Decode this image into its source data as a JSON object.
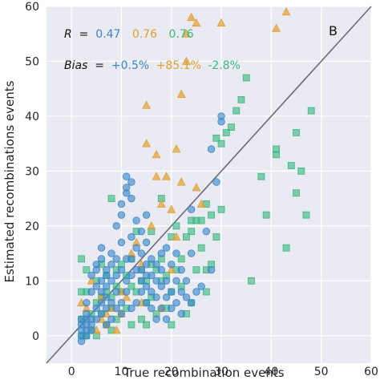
{
  "chart_data": {
    "type": "scatter",
    "xlabel": "True recombination events",
    "ylabel": "Estimated recombinations events",
    "xlim": [
      -5,
      60
    ],
    "ylim": [
      -5,
      60
    ],
    "x_ticks": [
      0,
      10,
      20,
      30,
      40,
      50,
      60
    ],
    "y_ticks": [
      0,
      10,
      20,
      30,
      40,
      50,
      60
    ],
    "grid": true,
    "background": "#eaeaf2",
    "panel_label": "B",
    "reference_line": {
      "from": [
        -5,
        -5
      ],
      "to": [
        60,
        60
      ],
      "color": "#6b6b78"
    },
    "annotations": {
      "r_label": "R",
      "r_equals": " = ",
      "bias_label": "Bias",
      "bias_equals": " = ",
      "r_values": [
        "0.47",
        "0.76",
        "0.76"
      ],
      "bias_values": [
        "+0.5%",
        "+85.1%",
        "-2.8%"
      ]
    },
    "series": [
      {
        "marker": "circle",
        "color": "#3a87c8",
        "points": [
          [
            2,
            -1
          ],
          [
            2,
            0
          ],
          [
            2,
            1
          ],
          [
            2,
            2
          ],
          [
            2,
            3
          ],
          [
            3,
            0
          ],
          [
            3,
            1
          ],
          [
            3,
            2
          ],
          [
            3,
            3
          ],
          [
            3,
            4
          ],
          [
            3,
            6
          ],
          [
            4,
            1
          ],
          [
            4,
            2
          ],
          [
            4,
            3
          ],
          [
            4,
            8
          ],
          [
            4,
            11
          ],
          [
            5,
            3
          ],
          [
            5,
            5
          ],
          [
            5,
            9
          ],
          [
            5,
            12
          ],
          [
            5,
            13
          ],
          [
            6,
            4
          ],
          [
            6,
            6
          ],
          [
            6,
            8
          ],
          [
            6,
            10
          ],
          [
            6,
            14
          ],
          [
            6,
            16
          ],
          [
            7,
            2
          ],
          [
            7,
            5
          ],
          [
            7,
            7
          ],
          [
            7,
            9
          ],
          [
            7,
            11
          ],
          [
            7,
            12
          ],
          [
            8,
            3
          ],
          [
            8,
            6
          ],
          [
            8,
            10
          ],
          [
            8,
            13
          ],
          [
            8,
            15
          ],
          [
            9,
            5
          ],
          [
            9,
            8
          ],
          [
            9,
            11
          ],
          [
            9,
            14
          ],
          [
            9,
            20
          ],
          [
            10,
            4
          ],
          [
            10,
            6
          ],
          [
            10,
            12
          ],
          [
            10,
            17
          ],
          [
            10,
            22
          ],
          [
            10,
            24
          ],
          [
            11,
            8
          ],
          [
            11,
            10
          ],
          [
            11,
            14
          ],
          [
            11,
            26
          ],
          [
            11,
            27
          ],
          [
            11,
            29
          ],
          [
            12,
            5
          ],
          [
            12,
            11
          ],
          [
            12,
            14
          ],
          [
            12,
            18
          ],
          [
            12,
            25
          ],
          [
            12,
            28
          ],
          [
            13,
            6
          ],
          [
            13,
            12
          ],
          [
            13,
            16
          ],
          [
            13,
            21
          ],
          [
            14,
            8
          ],
          [
            14,
            10
          ],
          [
            14,
            12
          ],
          [
            14,
            15
          ],
          [
            14,
            19
          ],
          [
            15,
            6
          ],
          [
            15,
            9
          ],
          [
            15,
            11
          ],
          [
            15,
            13
          ],
          [
            15,
            17
          ],
          [
            15,
            22
          ],
          [
            16,
            5
          ],
          [
            16,
            8
          ],
          [
            16,
            11
          ],
          [
            16,
            14
          ],
          [
            17,
            3
          ],
          [
            17,
            7
          ],
          [
            17,
            10
          ],
          [
            17,
            13
          ],
          [
            18,
            5
          ],
          [
            18,
            9
          ],
          [
            18,
            12
          ],
          [
            18,
            15
          ],
          [
            19,
            3
          ],
          [
            19,
            7
          ],
          [
            19,
            10
          ],
          [
            19,
            16
          ],
          [
            20,
            5
          ],
          [
            20,
            8
          ],
          [
            20,
            13
          ],
          [
            21,
            6
          ],
          [
            21,
            10
          ],
          [
            21,
            15
          ],
          [
            22,
            4
          ],
          [
            22,
            8
          ],
          [
            22,
            12
          ],
          [
            23,
            7
          ],
          [
            23,
            10
          ],
          [
            24,
            6
          ],
          [
            24,
            15
          ],
          [
            24,
            23
          ],
          [
            25,
            8
          ],
          [
            26,
            9
          ],
          [
            27,
            19
          ],
          [
            28,
            12
          ],
          [
            29,
            28
          ],
          [
            30,
            39
          ],
          [
            30,
            40
          ],
          [
            28,
            34
          ]
        ]
      },
      {
        "marker": "triangle",
        "color": "#e0a030",
        "points": [
          [
            2,
            6
          ],
          [
            3,
            5
          ],
          [
            4,
            10
          ],
          [
            5,
            1
          ],
          [
            6,
            3
          ],
          [
            6,
            7
          ],
          [
            7,
            2
          ],
          [
            7,
            4
          ],
          [
            8,
            5
          ],
          [
            9,
            1
          ],
          [
            10,
            4
          ],
          [
            10,
            8
          ],
          [
            11,
            7
          ],
          [
            12,
            15
          ],
          [
            13,
            17
          ],
          [
            14,
            6
          ],
          [
            14,
            13
          ],
          [
            15,
            42
          ],
          [
            15,
            35
          ],
          [
            16,
            20
          ],
          [
            17,
            29
          ],
          [
            17,
            33
          ],
          [
            18,
            24
          ],
          [
            18,
            5
          ],
          [
            19,
            29
          ],
          [
            20,
            23
          ],
          [
            20,
            12
          ],
          [
            21,
            34
          ],
          [
            21,
            18
          ],
          [
            22,
            28
          ],
          [
            22,
            44
          ],
          [
            23,
            55
          ],
          [
            23,
            50
          ],
          [
            24,
            58
          ],
          [
            25,
            57
          ],
          [
            25,
            27
          ],
          [
            26,
            24
          ],
          [
            30,
            57
          ],
          [
            41,
            56
          ],
          [
            43,
            59
          ]
        ]
      },
      {
        "marker": "square",
        "color": "#3ab880",
        "points": [
          [
            2,
            0
          ],
          [
            2,
            3
          ],
          [
            2,
            8
          ],
          [
            2,
            14
          ],
          [
            3,
            0
          ],
          [
            3,
            8
          ],
          [
            3,
            12
          ],
          [
            4,
            1
          ],
          [
            4,
            4
          ],
          [
            5,
            0
          ],
          [
            5,
            6
          ],
          [
            5,
            10
          ],
          [
            6,
            4
          ],
          [
            6,
            7
          ],
          [
            6,
            13
          ],
          [
            7,
            2
          ],
          [
            7,
            8
          ],
          [
            7,
            11
          ],
          [
            8,
            1
          ],
          [
            8,
            5
          ],
          [
            8,
            7
          ],
          [
            8,
            25
          ],
          [
            9,
            3
          ],
          [
            9,
            9
          ],
          [
            9,
            12
          ],
          [
            10,
            8
          ],
          [
            10,
            13
          ],
          [
            11,
            5
          ],
          [
            11,
            11
          ],
          [
            12,
            2
          ],
          [
            12,
            9
          ],
          [
            12,
            14
          ],
          [
            13,
            8
          ],
          [
            13,
            19
          ],
          [
            14,
            3
          ],
          [
            14,
            10
          ],
          [
            14,
            12
          ],
          [
            15,
            2
          ],
          [
            15,
            6
          ],
          [
            15,
            10
          ],
          [
            16,
            7
          ],
          [
            16,
            19
          ],
          [
            16,
            13
          ],
          [
            17,
            4
          ],
          [
            17,
            12
          ],
          [
            18,
            10
          ],
          [
            18,
            14
          ],
          [
            18,
            25
          ],
          [
            19,
            5
          ],
          [
            19,
            11
          ],
          [
            20,
            2
          ],
          [
            20,
            8
          ],
          [
            20,
            18
          ],
          [
            21,
            12
          ],
          [
            21,
            20
          ],
          [
            22,
            9
          ],
          [
            22,
            14
          ],
          [
            23,
            4
          ],
          [
            23,
            18
          ],
          [
            24,
            6
          ],
          [
            24,
            19
          ],
          [
            24,
            21
          ],
          [
            25,
            12
          ],
          [
            25,
            21
          ],
          [
            26,
            16
          ],
          [
            26,
            21
          ],
          [
            27,
            8
          ],
          [
            27,
            12
          ],
          [
            27,
            24
          ],
          [
            28,
            13
          ],
          [
            28,
            22
          ],
          [
            29,
            18
          ],
          [
            29,
            36
          ],
          [
            30,
            23
          ],
          [
            30,
            35
          ],
          [
            31,
            37
          ],
          [
            32,
            38
          ],
          [
            33,
            41
          ],
          [
            34,
            43
          ],
          [
            35,
            47
          ],
          [
            36,
            10
          ],
          [
            38,
            29
          ],
          [
            39,
            22
          ],
          [
            41,
            33
          ],
          [
            41,
            34
          ],
          [
            43,
            16
          ],
          [
            44,
            31
          ],
          [
            45,
            26
          ],
          [
            46,
            30
          ],
          [
            47,
            22
          ],
          [
            48,
            41
          ],
          [
            45,
            37
          ]
        ]
      }
    ]
  }
}
